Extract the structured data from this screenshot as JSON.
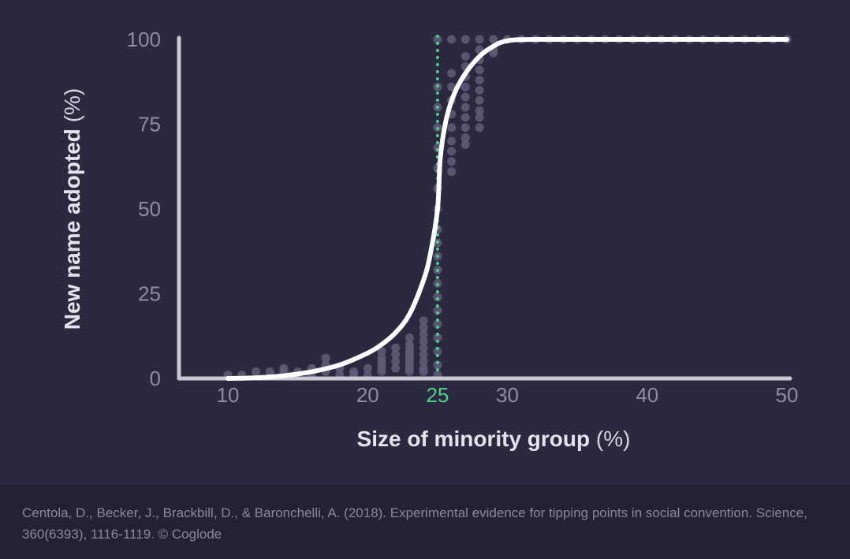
{
  "chart_data": {
    "type": "scatter",
    "xlabel_bold": "Size of minority group",
    "xlabel_unit": "(%)",
    "ylabel_bold": "New name adopted",
    "ylabel_unit": "(%)",
    "xlim": [
      6.5,
      50
    ],
    "ylim": [
      0,
      100
    ],
    "x_ticks": [
      10,
      20,
      25,
      30,
      40,
      50
    ],
    "y_ticks": [
      0,
      25,
      50,
      75,
      100
    ],
    "highlight_tick": 25,
    "threshold_x": 25,
    "colors": {
      "background": "#2a2940",
      "axis": "#c9c8d6",
      "curve": "#ffffff",
      "threshold": "#4fcf86",
      "points": "#5f5d78",
      "footer": "#232233"
    },
    "fitted_curve": [
      [
        10,
        0.0
      ],
      [
        12,
        0.2
      ],
      [
        14,
        0.8
      ],
      [
        16,
        2.0
      ],
      [
        18,
        4.0
      ],
      [
        20,
        7.5
      ],
      [
        21,
        10.0
      ],
      [
        22,
        13.5
      ],
      [
        23,
        19.0
      ],
      [
        24,
        29.0
      ],
      [
        24.5,
        37.0
      ],
      [
        25,
        50.0
      ],
      [
        25.2,
        65.0
      ],
      [
        25.6,
        76.0
      ],
      [
        26.2,
        84.0
      ],
      [
        27,
        90.0
      ],
      [
        28,
        95.0
      ],
      [
        29,
        98.0
      ],
      [
        30,
        99.6
      ],
      [
        32,
        100.0
      ],
      [
        40,
        100.0
      ],
      [
        50,
        100.0
      ]
    ],
    "points": [
      [
        10,
        1
      ],
      [
        11,
        1
      ],
      [
        12,
        2
      ],
      [
        13,
        2
      ],
      [
        14,
        3
      ],
      [
        14,
        2
      ],
      [
        15,
        2
      ],
      [
        16,
        3
      ],
      [
        16,
        1
      ],
      [
        17,
        6
      ],
      [
        17,
        4
      ],
      [
        17,
        2
      ],
      [
        18,
        3
      ],
      [
        18,
        1
      ],
      [
        19,
        2
      ],
      [
        19,
        1
      ],
      [
        20,
        3
      ],
      [
        20,
        1
      ],
      [
        21,
        8
      ],
      [
        21,
        6
      ],
      [
        21,
        5
      ],
      [
        21,
        4
      ],
      [
        21,
        3
      ],
      [
        21,
        2
      ],
      [
        22,
        9
      ],
      [
        22,
        7
      ],
      [
        22,
        5
      ],
      [
        22,
        3
      ],
      [
        23,
        12
      ],
      [
        23,
        10
      ],
      [
        23,
        9
      ],
      [
        23,
        8
      ],
      [
        23,
        7
      ],
      [
        23,
        6
      ],
      [
        23,
        5
      ],
      [
        23,
        4
      ],
      [
        23,
        3
      ],
      [
        23,
        2
      ],
      [
        24,
        17
      ],
      [
        24,
        15
      ],
      [
        24,
        13
      ],
      [
        24,
        11
      ],
      [
        24,
        9
      ],
      [
        24,
        7
      ],
      [
        24,
        5
      ],
      [
        24,
        3
      ],
      [
        24,
        2
      ],
      [
        25,
        100
      ],
      [
        25,
        86
      ],
      [
        25,
        80
      ],
      [
        25,
        74
      ],
      [
        25,
        68
      ],
      [
        25,
        62
      ],
      [
        25,
        56
      ],
      [
        25,
        50
      ],
      [
        25,
        44
      ],
      [
        25,
        40
      ],
      [
        25,
        36
      ],
      [
        25,
        32
      ],
      [
        25,
        28
      ],
      [
        25,
        24
      ],
      [
        25,
        20
      ],
      [
        25,
        16
      ],
      [
        25,
        12
      ],
      [
        25,
        8
      ],
      [
        25,
        4
      ],
      [
        25,
        1
      ],
      [
        26,
        100
      ],
      [
        26,
        90
      ],
      [
        26,
        86
      ],
      [
        26,
        82
      ],
      [
        26,
        78
      ],
      [
        26,
        74
      ],
      [
        26,
        70
      ],
      [
        26,
        67
      ],
      [
        26,
        64
      ],
      [
        26,
        61
      ],
      [
        27,
        100
      ],
      [
        27,
        95
      ],
      [
        27,
        92
      ],
      [
        27,
        89
      ],
      [
        27,
        86
      ],
      [
        27,
        83
      ],
      [
        27,
        80
      ],
      [
        27,
        77
      ],
      [
        27,
        74
      ],
      [
        27,
        71
      ],
      [
        27,
        69
      ],
      [
        28,
        100
      ],
      [
        28,
        97
      ],
      [
        28,
        94
      ],
      [
        28,
        91
      ],
      [
        28,
        88
      ],
      [
        28,
        85
      ],
      [
        28,
        82
      ],
      [
        28,
        79
      ],
      [
        28,
        77
      ],
      [
        28,
        74
      ],
      [
        29,
        100
      ],
      [
        29,
        97
      ],
      [
        29,
        96
      ],
      [
        30,
        100
      ],
      [
        31,
        100
      ],
      [
        32,
        100
      ],
      [
        33,
        100
      ],
      [
        34,
        100
      ],
      [
        35,
        100
      ],
      [
        36,
        100
      ],
      [
        37,
        100
      ],
      [
        38,
        100
      ],
      [
        39,
        100
      ],
      [
        40,
        100
      ],
      [
        41,
        100
      ],
      [
        42,
        100
      ],
      [
        43,
        100
      ],
      [
        44,
        100
      ],
      [
        45,
        100
      ],
      [
        46,
        100
      ],
      [
        47,
        100
      ],
      [
        48,
        100
      ],
      [
        49,
        100
      ],
      [
        50,
        100
      ]
    ]
  },
  "footer": {
    "citation": "Centola, D., Becker, J., Brackbill, D., & Baronchelli, A. (2018). Experimental evidence for tipping points in social convention. Science, 360(6393), 1116-1119. © Coglode"
  }
}
